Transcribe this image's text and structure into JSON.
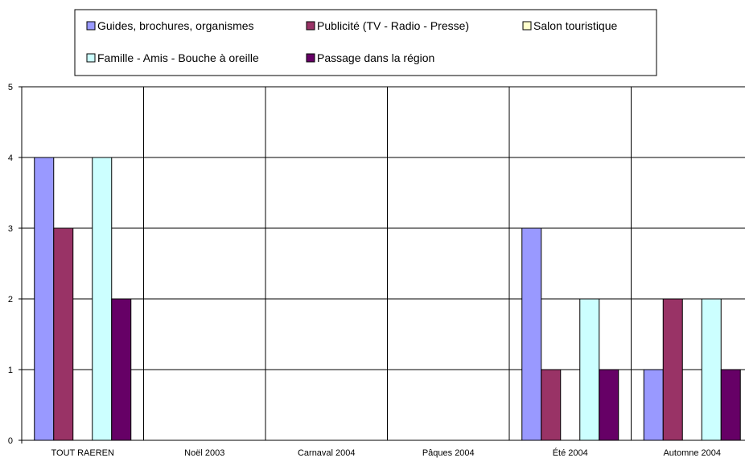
{
  "chart_data": {
    "type": "bar",
    "title": "",
    "xlabel": "",
    "ylabel": "",
    "ylim": [
      0,
      5
    ],
    "yticks": [
      0,
      1,
      2,
      3,
      4,
      5
    ],
    "grid": true,
    "legend_position": "top",
    "categories": [
      "TOUT RAEREN",
      "Noël 2003",
      "Carnaval 2004",
      "Pâques 2004",
      "Été 2004",
      "Automne 2004"
    ],
    "series": [
      {
        "name": "Guides, brochures, organismes",
        "color": "#9999ff",
        "values": [
          4,
          0,
          0,
          0,
          3,
          1
        ]
      },
      {
        "name": "Publicité (TV - Radio - Presse)",
        "color": "#993366",
        "values": [
          3,
          0,
          0,
          0,
          1,
          2
        ]
      },
      {
        "name": "Salon touristique",
        "color": "#ffffcc",
        "values": [
          0,
          0,
          0,
          0,
          0,
          0
        ]
      },
      {
        "name": "Famille - Amis - Bouche à oreille",
        "color": "#ccffff",
        "values": [
          4,
          0,
          0,
          0,
          2,
          2
        ]
      },
      {
        "name": "Passage dans la région",
        "color": "#660066",
        "values": [
          2,
          0,
          0,
          0,
          1,
          1
        ]
      }
    ]
  }
}
